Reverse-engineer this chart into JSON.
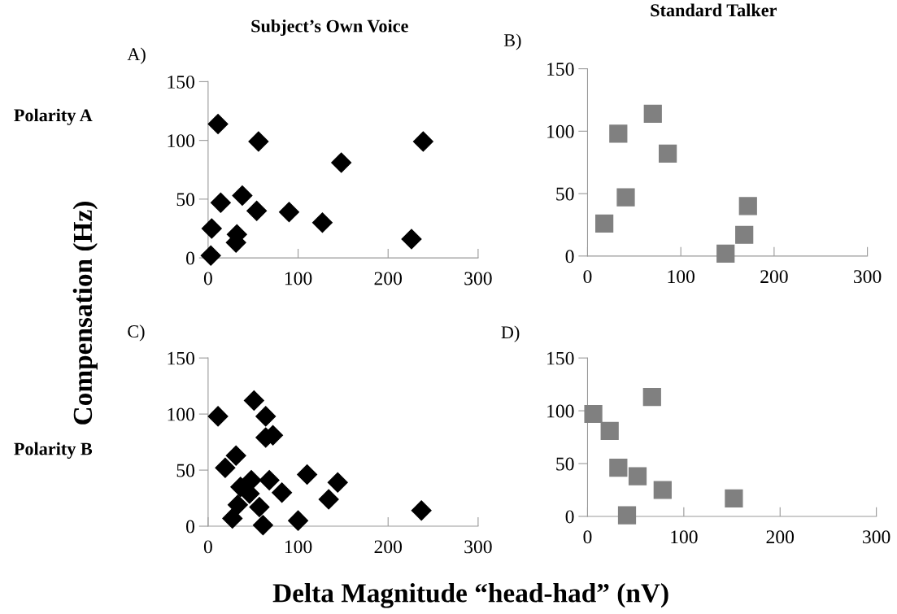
{
  "chart_data": [
    {
      "type": "scatter",
      "title": "A)",
      "subtitle": "Subject’s Own Voice",
      "ylabel": "Compensation (Hz)",
      "annotations": [
        "Polarity A"
      ],
      "marker": "diamond",
      "series": [
        {
          "color": "#000000",
          "x": [
            11,
            56,
            239,
            148,
            14,
            38,
            54,
            90,
            127,
            4,
            32,
            31,
            226,
            3
          ],
          "values": [
            114,
            99,
            99,
            81,
            47,
            53,
            40,
            39,
            30,
            25,
            20,
            13,
            16,
            2
          ]
        }
      ],
      "xlim": [
        0,
        300
      ],
      "xticks": [
        0,
        100,
        200,
        300
      ],
      "ylim": [
        0,
        150
      ],
      "yticks": [
        0,
        50,
        100,
        150
      ],
      "grid": false,
      "legend": false
    },
    {
      "type": "scatter",
      "title": "B)",
      "subtitle": "Standard Talker",
      "marker": "square",
      "series": [
        {
          "color": "#808080",
          "x": [
            70,
            33,
            86,
            41,
            18,
            172,
            168,
            148
          ],
          "values": [
            114,
            98,
            82,
            47,
            26,
            40,
            17,
            2
          ]
        }
      ],
      "xlim": [
        0,
        300
      ],
      "xticks": [
        0,
        100,
        200,
        300
      ],
      "ylim": [
        0,
        150
      ],
      "yticks": [
        0,
        50,
        100,
        150
      ],
      "grid": false,
      "legend": false
    },
    {
      "type": "scatter",
      "title": "C)",
      "xlabel": "Delta Magnitude “head-had” (nV)",
      "annotations": [
        "Polarity B"
      ],
      "marker": "diamond",
      "series": [
        {
          "color": "#000000",
          "x": [
            11,
            51,
            64,
            64,
            72,
            31,
            19,
            110,
            144,
            68,
            36,
            48,
            46,
            82,
            134,
            33,
            57,
            27,
            61,
            100,
            237
          ],
          "values": [
            98,
            112,
            98,
            79,
            81,
            63,
            52,
            46,
            39,
            41,
            35,
            41,
            29,
            30,
            24,
            19,
            17,
            7,
            1,
            5,
            14
          ]
        }
      ],
      "xlim": [
        0,
        300
      ],
      "xticks": [
        0,
        100,
        200,
        300
      ],
      "ylim": [
        0,
        150
      ],
      "yticks": [
        0,
        50,
        100,
        150
      ],
      "grid": false,
      "legend": false
    },
    {
      "type": "scatter",
      "title": "D)",
      "marker": "square",
      "series": [
        {
          "color": "#808080",
          "x": [
            6,
            23,
            67,
            32,
            52,
            78,
            152,
            41
          ],
          "values": [
            97,
            81,
            113,
            46,
            38,
            25,
            17,
            1
          ]
        }
      ],
      "xlim": [
        0,
        300
      ],
      "xticks": [
        0,
        100,
        200,
        300
      ],
      "ylim": [
        0,
        150
      ],
      "yticks": [
        0,
        50,
        100,
        150
      ],
      "grid": false,
      "legend": false
    }
  ]
}
